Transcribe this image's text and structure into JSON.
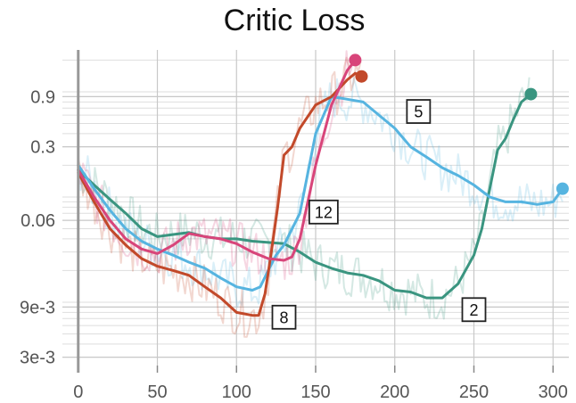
{
  "chart_data": {
    "type": "line",
    "title": "Critic Loss",
    "xlabel": "",
    "ylabel": "",
    "yscale": "log",
    "xlim": [
      -10,
      310
    ],
    "ylim": [
      0.0025,
      2.5
    ],
    "x_ticks": [
      0,
      50,
      100,
      150,
      200,
      250,
      300
    ],
    "x_tick_labels": [
      "0",
      "50",
      "100",
      "150",
      "200",
      "250",
      "300"
    ],
    "y_ticks": [
      0.003,
      0.009,
      0.06,
      0.3,
      0.9
    ],
    "y_tick_labels": [
      "3e-3",
      "9e-3",
      "0.06",
      "0.3",
      "0.9"
    ],
    "grid": true,
    "series": [
      {
        "name": "2",
        "color": "#3a9580",
        "x": [
          0,
          10,
          20,
          30,
          40,
          50,
          60,
          70,
          80,
          90,
          100,
          110,
          120,
          130,
          140,
          150,
          160,
          170,
          180,
          190,
          200,
          210,
          220,
          230,
          240,
          250,
          255,
          260,
          265,
          270,
          275,
          280,
          286
        ],
        "y": [
          0.18,
          0.13,
          0.095,
          0.07,
          0.05,
          0.042,
          0.044,
          0.046,
          0.042,
          0.04,
          0.04,
          0.038,
          0.037,
          0.036,
          0.03,
          0.024,
          0.021,
          0.019,
          0.018,
          0.016,
          0.013,
          0.0125,
          0.011,
          0.011,
          0.015,
          0.028,
          0.05,
          0.12,
          0.28,
          0.36,
          0.55,
          0.8,
          0.95
        ]
      },
      {
        "name": "5",
        "color": "#56b4e0",
        "x": [
          0,
          10,
          20,
          30,
          40,
          50,
          60,
          70,
          80,
          90,
          100,
          110,
          115,
          120,
          125,
          130,
          140,
          150,
          160,
          170,
          180,
          190,
          200,
          210,
          220,
          230,
          240,
          250,
          260,
          270,
          280,
          290,
          300,
          306
        ],
        "y": [
          0.2,
          0.12,
          0.075,
          0.05,
          0.038,
          0.032,
          0.028,
          0.024,
          0.021,
          0.017,
          0.014,
          0.013,
          0.014,
          0.02,
          0.028,
          0.035,
          0.07,
          0.4,
          0.9,
          0.85,
          0.8,
          0.6,
          0.45,
          0.3,
          0.24,
          0.19,
          0.16,
          0.13,
          0.1,
          0.09,
          0.09,
          0.085,
          0.09,
          0.12
        ]
      },
      {
        "name": "8",
        "color": "#c2492a",
        "x": [
          0,
          10,
          20,
          30,
          40,
          50,
          60,
          70,
          80,
          90,
          100,
          110,
          114,
          118,
          122,
          126,
          130,
          135,
          140,
          150,
          160,
          170,
          175,
          179
        ],
        "y": [
          0.17,
          0.09,
          0.05,
          0.035,
          0.026,
          0.022,
          0.02,
          0.018,
          0.014,
          0.011,
          0.008,
          0.0075,
          0.0075,
          0.012,
          0.03,
          0.08,
          0.25,
          0.3,
          0.45,
          0.75,
          0.9,
          1.3,
          1.5,
          1.4
        ]
      },
      {
        "name": "12",
        "color": "#d8457a",
        "x": [
          0,
          10,
          20,
          30,
          40,
          50,
          60,
          70,
          80,
          90,
          100,
          110,
          120,
          130,
          135,
          140,
          150,
          160,
          170,
          175
        ],
        "y": [
          0.18,
          0.1,
          0.06,
          0.04,
          0.032,
          0.029,
          0.035,
          0.045,
          0.042,
          0.04,
          0.036,
          0.03,
          0.026,
          0.025,
          0.027,
          0.04,
          0.2,
          0.75,
          1.6,
          2.0
        ]
      }
    ],
    "annotations": [
      {
        "text": "5",
        "series": "5",
        "x": 215,
        "y": 0.65
      },
      {
        "text": "12",
        "series": "12",
        "x": 155,
        "y": 0.072
      },
      {
        "text": "8",
        "series": "8",
        "x": 130,
        "y": 0.0072
      },
      {
        "text": "2",
        "series": "2",
        "x": 250,
        "y": 0.0085
      }
    ]
  }
}
